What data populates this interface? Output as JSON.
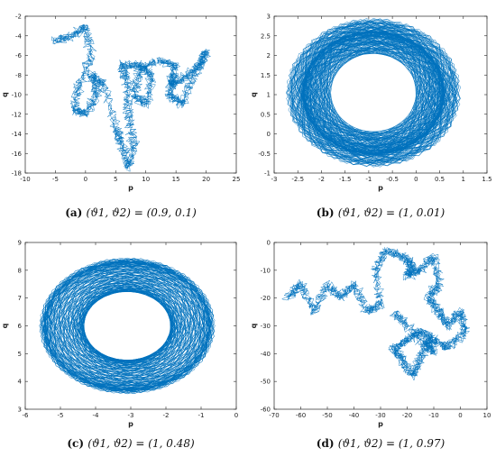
{
  "chart_data": [
    {
      "type": "line",
      "caption_tag": "(a)",
      "caption_text": "(ϑ1, ϑ2) = (0.9, 0.1)",
      "xlabel": "p",
      "ylabel": "q",
      "xlim": [
        -10,
        25
      ],
      "ylim": [
        -18,
        -2
      ],
      "xticks": [
        -10,
        -5,
        0,
        5,
        10,
        15,
        20,
        25
      ],
      "yticks": [
        -18,
        -16,
        -14,
        -12,
        -10,
        -8,
        -6,
        -4,
        -2
      ],
      "grid": false,
      "color": "#0072BD",
      "trajectory": {
        "shape": "random-walk-loops",
        "seed": 11,
        "waypoints": [
          [
            -5,
            -4.5
          ],
          [
            -2,
            -4
          ],
          [
            0,
            -3
          ],
          [
            1,
            -6
          ],
          [
            -1,
            -9
          ],
          [
            -2,
            -11.5
          ],
          [
            0,
            -12
          ],
          [
            2,
            -10
          ],
          [
            1,
            -8
          ],
          [
            3,
            -9
          ],
          [
            5,
            -13.5
          ],
          [
            6,
            -15
          ],
          [
            7,
            -17.5
          ],
          [
            8,
            -15
          ],
          [
            7,
            -12
          ],
          [
            7,
            -9
          ],
          [
            6,
            -7
          ],
          [
            9,
            -7
          ],
          [
            11,
            -8
          ],
          [
            10,
            -11
          ],
          [
            8,
            -10
          ],
          [
            9,
            -7.5
          ],
          [
            12,
            -6.5
          ],
          [
            15,
            -7
          ],
          [
            14,
            -9
          ],
          [
            16,
            -8.5
          ],
          [
            19,
            -7
          ],
          [
            20,
            -5.5
          ],
          [
            18,
            -8
          ],
          [
            16,
            -11
          ],
          [
            14,
            -10
          ],
          [
            15,
            -8
          ]
        ]
      }
    },
    {
      "type": "line",
      "caption_tag": "(b)",
      "caption_text": "(ϑ1, ϑ2) = (1, 0.01)",
      "xlabel": "p",
      "ylabel": "q",
      "xlim": [
        -3,
        1.5
      ],
      "ylim": [
        -1,
        3
      ],
      "xticks": [
        -3,
        -2.5,
        -2,
        -1.5,
        -1,
        -0.5,
        0,
        0.5,
        1,
        1.5
      ],
      "yticks": [
        -1,
        -0.5,
        0,
        0.5,
        1,
        1.5,
        2,
        2.5,
        3
      ],
      "grid": false,
      "color": "#0072BD",
      "trajectory": {
        "shape": "annulus",
        "center": [
          -0.9,
          1.05
        ],
        "outer_radii": [
          1.85,
          1.9
        ],
        "inner_radii": [
          0.95,
          1.05
        ],
        "band_split": 0.6
      }
    },
    {
      "type": "line",
      "caption_tag": "(c)",
      "caption_text": "(ϑ1, ϑ2) = (1, 0.48)",
      "xlabel": "p",
      "ylabel": "q",
      "xlim": [
        -6,
        0
      ],
      "ylim": [
        3,
        9
      ],
      "xticks": [
        -6,
        -5,
        -4,
        -3,
        -2,
        -1,
        0
      ],
      "yticks": [
        3,
        4,
        5,
        6,
        7,
        8,
        9
      ],
      "grid": false,
      "color": "#0072BD",
      "trajectory": {
        "shape": "annulus",
        "center": [
          -3.1,
          6.0
        ],
        "outer_radii": [
          2.5,
          2.45
        ],
        "inner_radii": [
          1.3,
          1.3
        ],
        "band_split": 0
      }
    },
    {
      "type": "line",
      "caption_tag": "(d)",
      "caption_text": "(ϑ1, ϑ2) = (1, 0.97)",
      "xlabel": "p",
      "ylabel": "q",
      "xlim": [
        -70,
        10
      ],
      "ylim": [
        -60,
        0
      ],
      "xticks": [
        -70,
        -60,
        -50,
        -40,
        -30,
        -20,
        -10,
        0,
        10
      ],
      "yticks": [
        -60,
        -50,
        -40,
        -30,
        -20,
        -10,
        0
      ],
      "grid": false,
      "color": "#0072BD",
      "trajectory": {
        "shape": "random-walk-loops",
        "seed": 29,
        "waypoints": [
          [
            -65,
            -20
          ],
          [
            -60,
            -15
          ],
          [
            -55,
            -25
          ],
          [
            -50,
            -15
          ],
          [
            -45,
            -20
          ],
          [
            -40,
            -15
          ],
          [
            -35,
            -25
          ],
          [
            -30,
            -22
          ],
          [
            -32,
            -10
          ],
          [
            -28,
            -3
          ],
          [
            -22,
            -5
          ],
          [
            -18,
            -8
          ],
          [
            -20,
            -12
          ],
          [
            -15,
            -10
          ],
          [
            -10,
            -5
          ],
          [
            -8,
            -15
          ],
          [
            -12,
            -20
          ],
          [
            -8,
            -25
          ],
          [
            -5,
            -30
          ],
          [
            0,
            -25
          ],
          [
            2,
            -32
          ],
          [
            -5,
            -38
          ],
          [
            -10,
            -35
          ],
          [
            -15,
            -32
          ],
          [
            -20,
            -35
          ],
          [
            -25,
            -38
          ],
          [
            -22,
            -42
          ],
          [
            -18,
            -48
          ],
          [
            -15,
            -42
          ],
          [
            -12,
            -35
          ],
          [
            -10,
            -40
          ],
          [
            -20,
            -30
          ],
          [
            -25,
            -25
          ]
        ]
      }
    }
  ]
}
